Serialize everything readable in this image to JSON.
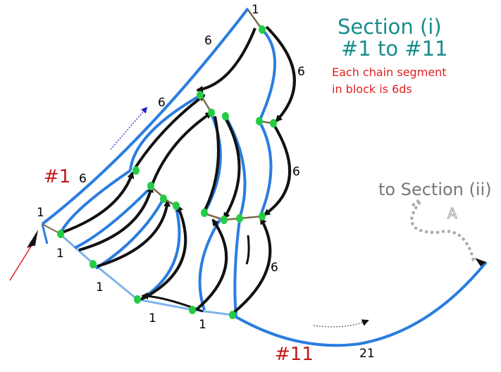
{
  "heading": {
    "title": "Section  (i)",
    "range": "#1 to #11"
  },
  "note": {
    "line1": "Each chain segment",
    "line2": "in block is 6ds"
  },
  "next_section": {
    "label": "to Section (ii)",
    "marker": "A"
  },
  "rows": {
    "first": "#1",
    "last": "#11"
  },
  "segment_labels": {
    "top": "1",
    "outer_upper": "6",
    "outer_mid": "6",
    "outer_lower": "6",
    "right_upper": "6",
    "right_mid": "6",
    "right_lower": "6",
    "left_start": "1",
    "base_1": "1",
    "base_2": "1",
    "base_3": "1",
    "base_4": "1",
    "tail": "21"
  },
  "colors": {
    "chain_blue": "#2a7de1",
    "chain_light_blue": "#7fb3ea",
    "chain_black": "#111111",
    "joint_green": "#22cc44",
    "title_teal": "#1a8c8c",
    "note_red": "#e02020",
    "row_label_red": "#c01818",
    "link_brown": "#7a6a4a",
    "dotted_gray": "#aaaaaa",
    "entry_arrow_red": "#dd2222",
    "direction_arrow_blue": "#2222cc"
  }
}
